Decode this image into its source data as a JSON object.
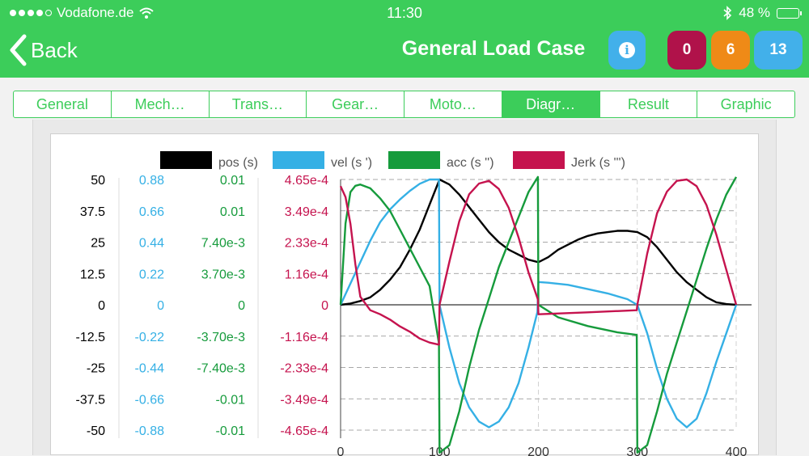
{
  "status": {
    "carrier": "Vodafone.de",
    "time": "11:30",
    "battery": "48 %"
  },
  "header": {
    "back_label": "Back",
    "title": "General Load Case",
    "badges": [
      {
        "label": "0",
        "color": "#b0124a"
      },
      {
        "label": "6",
        "color": "#ef8a17"
      },
      {
        "label": "13",
        "color": "#42b0ea"
      }
    ]
  },
  "tabs": [
    {
      "label": "General",
      "active": false
    },
    {
      "label": "Mech…",
      "active": false
    },
    {
      "label": "Trans…",
      "active": false
    },
    {
      "label": "Gear…",
      "active": false
    },
    {
      "label": "Moto…",
      "active": false
    },
    {
      "label": "Diagr…",
      "active": true
    },
    {
      "label": "Result",
      "active": false
    },
    {
      "label": "Graphic",
      "active": false
    }
  ],
  "chart_data": {
    "type": "line",
    "legend": [
      {
        "name": "pos (s)",
        "color": "#000000"
      },
      {
        "name": "vel (s ')",
        "color": "#35b0e5"
      },
      {
        "name": "acc (s '')",
        "color": "#169b3c"
      },
      {
        "name": "Jerk (s ''')",
        "color": "#c5134e"
      }
    ],
    "axes": [
      {
        "series": "pos (s)",
        "color": "#000000",
        "range": [
          -50,
          50
        ],
        "ticks": [
          "50",
          "37.5",
          "25",
          "12.5",
          "0",
          "-12.5",
          "-25",
          "-37.5",
          "-50"
        ]
      },
      {
        "series": "vel (s ')",
        "color": "#35b0e5",
        "range": [
          -0.88,
          0.88
        ],
        "ticks": [
          "0.88",
          "0.66",
          "0.44",
          "0.22",
          "0",
          "-0.22",
          "-0.44",
          "-0.66",
          "-0.88"
        ]
      },
      {
        "series": "acc (s '')",
        "color": "#169b3c",
        "range": [
          -0.01,
          0.01
        ],
        "ticks": [
          "0.01",
          "0.01",
          "7.40e-3",
          "3.70e-3",
          "0",
          "-3.70e-3",
          "-7.40e-3",
          "-0.01",
          "-0.01"
        ]
      },
      {
        "series": "Jerk (s ''')",
        "color": "#c5134e",
        "range": [
          -0.000465,
          0.000465
        ],
        "ticks": [
          "4.65e-4",
          "3.49e-4",
          "2.33e-4",
          "1.16e-4",
          "0",
          "-1.16e-4",
          "-2.33e-4",
          "-3.49e-4",
          "-4.65e-4"
        ]
      }
    ],
    "x_ticks": [
      "0",
      "100",
      "200",
      "300",
      "400"
    ],
    "xlim": [
      0,
      400
    ],
    "series": [
      {
        "name": "pos (s)",
        "color": "#000000",
        "axis": 0,
        "points": [
          [
            0,
            0
          ],
          [
            10,
            0.5
          ],
          [
            20,
            1.5
          ],
          [
            30,
            3
          ],
          [
            40,
            6
          ],
          [
            50,
            10
          ],
          [
            60,
            15
          ],
          [
            70,
            22
          ],
          [
            80,
            30
          ],
          [
            90,
            40
          ],
          [
            100,
            50
          ],
          [
            110,
            48
          ],
          [
            120,
            44
          ],
          [
            130,
            39
          ],
          [
            140,
            34
          ],
          [
            150,
            29
          ],
          [
            160,
            25
          ],
          [
            170,
            22
          ],
          [
            180,
            20
          ],
          [
            190,
            18
          ],
          [
            200,
            17
          ],
          [
            210,
            19
          ],
          [
            220,
            22
          ],
          [
            230,
            24
          ],
          [
            240,
            26
          ],
          [
            250,
            27.5
          ],
          [
            260,
            28.5
          ],
          [
            270,
            29
          ],
          [
            280,
            29.5
          ],
          [
            290,
            29.5
          ],
          [
            300,
            29
          ],
          [
            310,
            27
          ],
          [
            320,
            23
          ],
          [
            330,
            18
          ],
          [
            340,
            13
          ],
          [
            350,
            9
          ],
          [
            360,
            6
          ],
          [
            370,
            3
          ],
          [
            380,
            1
          ],
          [
            390,
            0.3
          ],
          [
            400,
            0
          ]
        ]
      },
      {
        "name": "vel (s ')",
        "color": "#35b0e5",
        "axis": 1,
        "points": [
          [
            0,
            0
          ],
          [
            10,
            0.15
          ],
          [
            20,
            0.3
          ],
          [
            30,
            0.45
          ],
          [
            40,
            0.58
          ],
          [
            50,
            0.67
          ],
          [
            60,
            0.74
          ],
          [
            70,
            0.8
          ],
          [
            80,
            0.85
          ],
          [
            90,
            0.88
          ],
          [
            99.5,
            0.88
          ],
          [
            100,
            0
          ],
          [
            110,
            -0.3
          ],
          [
            120,
            -0.55
          ],
          [
            130,
            -0.72
          ],
          [
            140,
            -0.82
          ],
          [
            150,
            -0.86
          ],
          [
            160,
            -0.82
          ],
          [
            170,
            -0.72
          ],
          [
            180,
            -0.55
          ],
          [
            190,
            -0.3
          ],
          [
            199,
            -0.05
          ],
          [
            200,
            0.16
          ],
          [
            210,
            0.155
          ],
          [
            230,
            0.14
          ],
          [
            250,
            0.11
          ],
          [
            270,
            0.08
          ],
          [
            290,
            0.04
          ],
          [
            300,
            0
          ],
          [
            310,
            -0.2
          ],
          [
            320,
            -0.45
          ],
          [
            330,
            -0.66
          ],
          [
            340,
            -0.8
          ],
          [
            350,
            -0.86
          ],
          [
            360,
            -0.8
          ],
          [
            370,
            -0.62
          ],
          [
            380,
            -0.4
          ],
          [
            390,
            -0.2
          ],
          [
            400,
            0
          ]
        ]
      },
      {
        "name": "acc (s '')",
        "color": "#169b3c",
        "axis": 2,
        "points": [
          [
            0,
            0
          ],
          [
            5,
            0.0065
          ],
          [
            10,
            0.009
          ],
          [
            15,
            0.0095
          ],
          [
            20,
            0.0096
          ],
          [
            30,
            0.0093
          ],
          [
            40,
            0.0085
          ],
          [
            50,
            0.0075
          ],
          [
            60,
            0.006
          ],
          [
            70,
            0.0045
          ],
          [
            80,
            0.003
          ],
          [
            90,
            0.0015
          ],
          [
            99.5,
            -0.0031
          ],
          [
            100,
            -0.0118
          ],
          [
            110,
            -0.0112
          ],
          [
            120,
            -0.0085
          ],
          [
            130,
            -0.005
          ],
          [
            140,
            -0.002
          ],
          [
            150,
            0.0005
          ],
          [
            160,
            0.003
          ],
          [
            170,
            0.005
          ],
          [
            180,
            0.007
          ],
          [
            190,
            0.009
          ],
          [
            199.5,
            0.0102
          ],
          [
            200,
            0
          ],
          [
            220,
            -0.001
          ],
          [
            250,
            -0.0017
          ],
          [
            280,
            -0.0022
          ],
          [
            299.5,
            -0.0024
          ],
          [
            300,
            -0.0118
          ],
          [
            310,
            -0.0112
          ],
          [
            320,
            -0.0085
          ],
          [
            330,
            -0.0055
          ],
          [
            340,
            -0.003
          ],
          [
            350,
            -0.0005
          ],
          [
            360,
            0.002
          ],
          [
            370,
            0.0045
          ],
          [
            380,
            0.0068
          ],
          [
            390,
            0.0088
          ],
          [
            400,
            0.0102
          ]
        ]
      },
      {
        "name": "Jerk (s ''')",
        "color": "#c5134e",
        "axis": 3,
        "points": [
          [
            0,
            0.00044
          ],
          [
            5,
            0.0004
          ],
          [
            10,
            0.0003
          ],
          [
            15,
            0.00015
          ],
          [
            20,
            3e-05
          ],
          [
            30,
            -2e-05
          ],
          [
            40,
            -3.5e-05
          ],
          [
            50,
            -5.5e-05
          ],
          [
            60,
            -8e-05
          ],
          [
            70,
            -0.0001
          ],
          [
            80,
            -0.000125
          ],
          [
            90,
            -0.00014
          ],
          [
            99.5,
            -0.000148
          ],
          [
            100,
            0
          ],
          [
            110,
            0.00016
          ],
          [
            120,
            0.00031
          ],
          [
            130,
            0.00041
          ],
          [
            140,
            0.00045
          ],
          [
            150,
            0.00046
          ],
          [
            160,
            0.00043
          ],
          [
            170,
            0.00036
          ],
          [
            180,
            0.00025
          ],
          [
            190,
            0.00012
          ],
          [
            199.5,
            2e-05
          ],
          [
            200,
            -3.5e-05
          ],
          [
            250,
            -2.8e-05
          ],
          [
            299.5,
            -2e-05
          ],
          [
            300,
            0
          ],
          [
            310,
            0.00019
          ],
          [
            320,
            0.00034
          ],
          [
            330,
            0.00042
          ],
          [
            340,
            0.00046
          ],
          [
            350,
            0.000465
          ],
          [
            360,
            0.00044
          ],
          [
            370,
            0.00037
          ],
          [
            380,
            0.00026
          ],
          [
            390,
            0.00013
          ],
          [
            400,
            0
          ]
        ]
      }
    ]
  }
}
